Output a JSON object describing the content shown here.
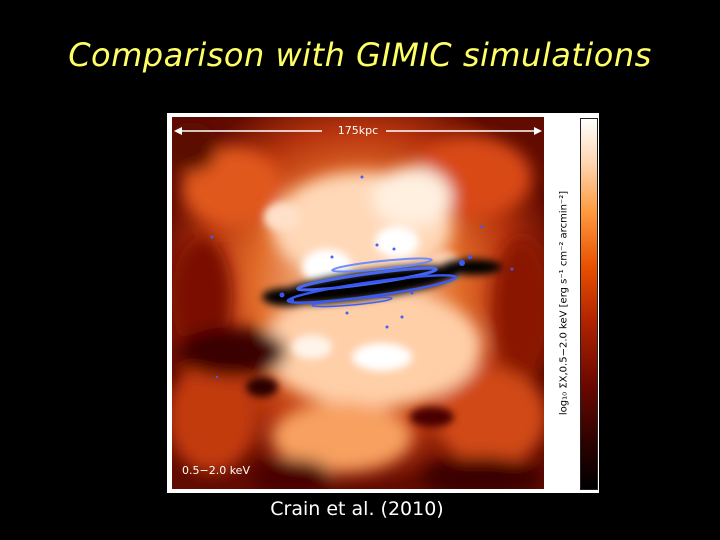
{
  "slide": {
    "title": "Comparison with GIMIC simulations",
    "caption": "Crain et al. (2010)"
  },
  "figure": {
    "scale_bar_label": "175kpc",
    "band_label": "0.5−2.0  keV",
    "colorbar_label": "log₁₀ ΣX,0.5−2.0 keV [erg s⁻¹ cm⁻² arcmin⁻²]"
  },
  "colors": {
    "background": "#000000",
    "title": "#ffff66",
    "caption": "#ffffff",
    "disk_particles": "#3a5cff"
  }
}
